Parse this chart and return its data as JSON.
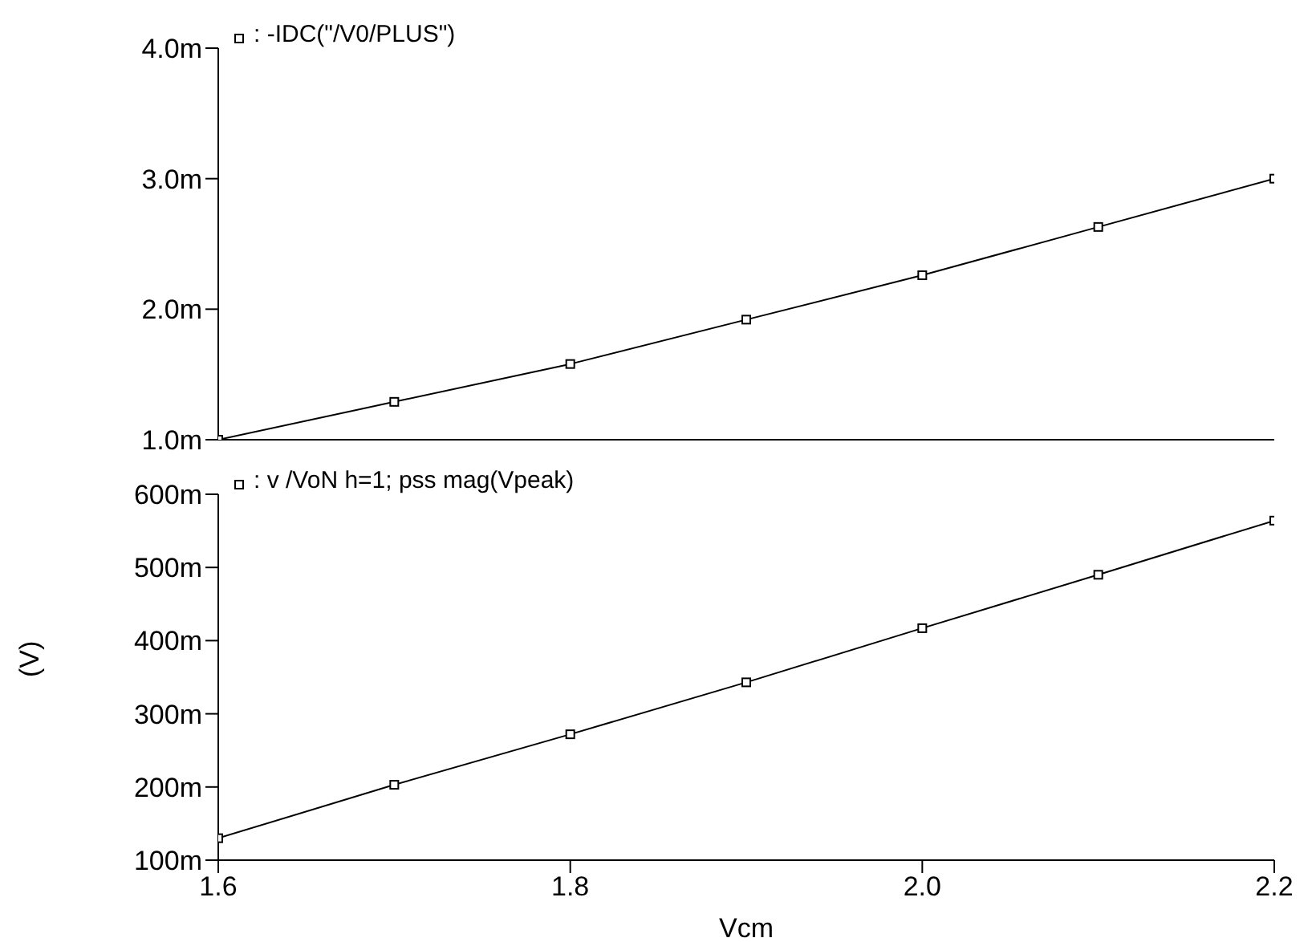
{
  "chart_data": [
    {
      "type": "line",
      "x": [
        1.6,
        1.7,
        1.8,
        1.9,
        2.0,
        2.1,
        2.2
      ],
      "series": [
        {
          "name": ": -IDC(\"/V0/PLUS\")",
          "color": "#000000",
          "values": [
            1.0,
            1.29,
            1.58,
            1.92,
            2.26,
            2.63,
            3.0
          ]
        }
      ],
      "xlim": [
        1.6,
        2.2
      ],
      "xticks": [
        {
          "value": 1.6,
          "label": null
        },
        {
          "value": 1.8,
          "label": null
        },
        {
          "value": 2.0,
          "label": null
        },
        {
          "value": 2.2,
          "label": null
        }
      ],
      "ylim": [
        1,
        4
      ],
      "yticks": [
        {
          "value": 1,
          "label": "1.0m"
        },
        {
          "value": 2,
          "label": "2.0m"
        },
        {
          "value": 3,
          "label": "3.0m"
        },
        {
          "value": 4,
          "label": "4.0m"
        }
      ],
      "tick_labels": "y",
      "legend": "top left",
      "marker": "square",
      "grid": false
    },
    {
      "type": "line",
      "x": [
        1.6,
        1.7,
        1.8,
        1.9,
        2.0,
        2.1,
        2.2
      ],
      "series": [
        {
          "name": ": v /VoN h=1; pss mag(Vpeak)",
          "color": "#000000",
          "values": [
            130,
            203,
            272,
            343,
            417,
            490,
            564
          ]
        }
      ],
      "xlim": [
        1.6,
        2.2
      ],
      "xticks": [
        {
          "value": 1.6,
          "label": "1.6"
        },
        {
          "value": 1.8,
          "label": "1.8"
        },
        {
          "value": 2.0,
          "label": "2.0"
        },
        {
          "value": 2.2,
          "label": "2.2"
        }
      ],
      "ylim": [
        100,
        600
      ],
      "yticks": [
        {
          "value": 100,
          "label": "100m"
        },
        {
          "value": 200,
          "label": "200m"
        },
        {
          "value": 300,
          "label": "300m"
        },
        {
          "value": 400,
          "label": "400m"
        },
        {
          "value": 500,
          "label": "500m"
        },
        {
          "value": 600,
          "label": "600m"
        }
      ],
      "xlabel": "Vcm",
      "ylabel": "(V)",
      "legend": "top left",
      "marker": "square",
      "grid": false
    }
  ]
}
